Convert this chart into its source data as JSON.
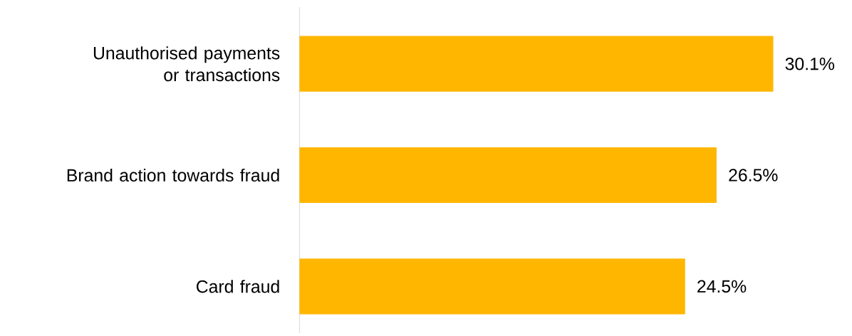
{
  "chart_data": {
    "type": "bar",
    "orientation": "horizontal",
    "categories": [
      "Unauthorised payments or transactions",
      "Brand action towards fraud",
      "Card fraud"
    ],
    "values": [
      30.1,
      26.5,
      24.5
    ],
    "color": "#ffb600",
    "value_labels": [
      "30.1%",
      "26.5%",
      "24.5%"
    ]
  }
}
